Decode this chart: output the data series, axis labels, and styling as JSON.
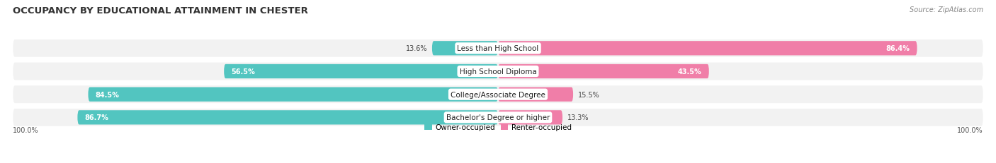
{
  "title": "OCCUPANCY BY EDUCATIONAL ATTAINMENT IN CHESTER",
  "source": "Source: ZipAtlas.com",
  "categories": [
    "Less than High School",
    "High School Diploma",
    "College/Associate Degree",
    "Bachelor's Degree or higher"
  ],
  "owner_pct": [
    13.6,
    56.5,
    84.5,
    86.7
  ],
  "renter_pct": [
    86.4,
    43.5,
    15.5,
    13.3
  ],
  "owner_color": "#52C5C0",
  "renter_color": "#F07EA8",
  "bg_color": "#ffffff",
  "bar_bg_color": "#e8e8e8",
  "row_bg_color": "#f2f2f2",
  "title_fontsize": 9.5,
  "source_fontsize": 7,
  "label_fontsize": 7.5,
  "value_fontsize": 7,
  "legend_fontsize": 7.5,
  "axis_label": "100.0%",
  "figsize": [
    14.06,
    2.32
  ],
  "dpi": 100
}
